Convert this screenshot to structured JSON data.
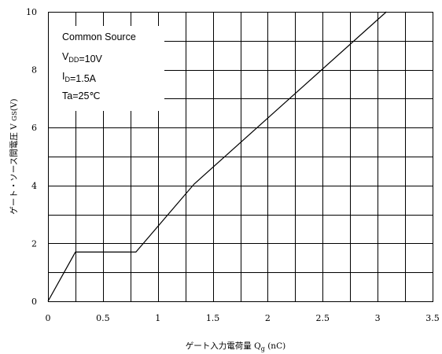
{
  "chart_data": {
    "type": "line",
    "title": "",
    "xlabel": "ゲート入力電荷量",
    "xlabel_symbol": "Q",
    "xlabel_symbol_sub": "g",
    "xlabel_unit": "(nC)",
    "ylabel": "ゲート・ソース間電圧",
    "ylabel_symbol": "V",
    "ylabel_symbol_sub": "GS",
    "ylabel_unit": "(V)",
    "xlim": [
      0,
      3.5
    ],
    "ylim": [
      0,
      10
    ],
    "x_ticks": [
      0,
      0.5,
      1,
      1.5,
      2,
      2.5,
      3,
      3.5
    ],
    "x_tick_labels": [
      "0",
      "0.5",
      "1",
      "1.5",
      "2",
      "2.5",
      "3",
      "3.5"
    ],
    "y_ticks": [
      0,
      2,
      4,
      6,
      8,
      10
    ],
    "y_tick_labels": [
      "0",
      "2",
      "4",
      "6",
      "8",
      "10"
    ],
    "x_grid_step": 0.25,
    "y_grid_step": 1,
    "grid": true,
    "series": [
      {
        "x": [
          0,
          0.25,
          0.8,
          1.33,
          3.08
        ],
        "y": [
          0,
          1.7,
          1.7,
          4.05,
          10
        ]
      }
    ],
    "annotations": [
      {
        "parts": [
          {
            "text": "Common Source"
          }
        ]
      },
      {
        "parts": [
          {
            "text": "V"
          },
          {
            "text": "DD",
            "sub": true
          },
          {
            "text": "=10V"
          }
        ]
      },
      {
        "parts": [
          {
            "text": "I"
          },
          {
            "text": "D",
            "sub": true
          },
          {
            "text": "=1.5A"
          }
        ]
      },
      {
        "parts": [
          {
            "text": "Ta=25℃"
          }
        ]
      }
    ],
    "colors": {
      "line": "#000000",
      "grid": "#000000",
      "background": "#ffffff"
    }
  }
}
